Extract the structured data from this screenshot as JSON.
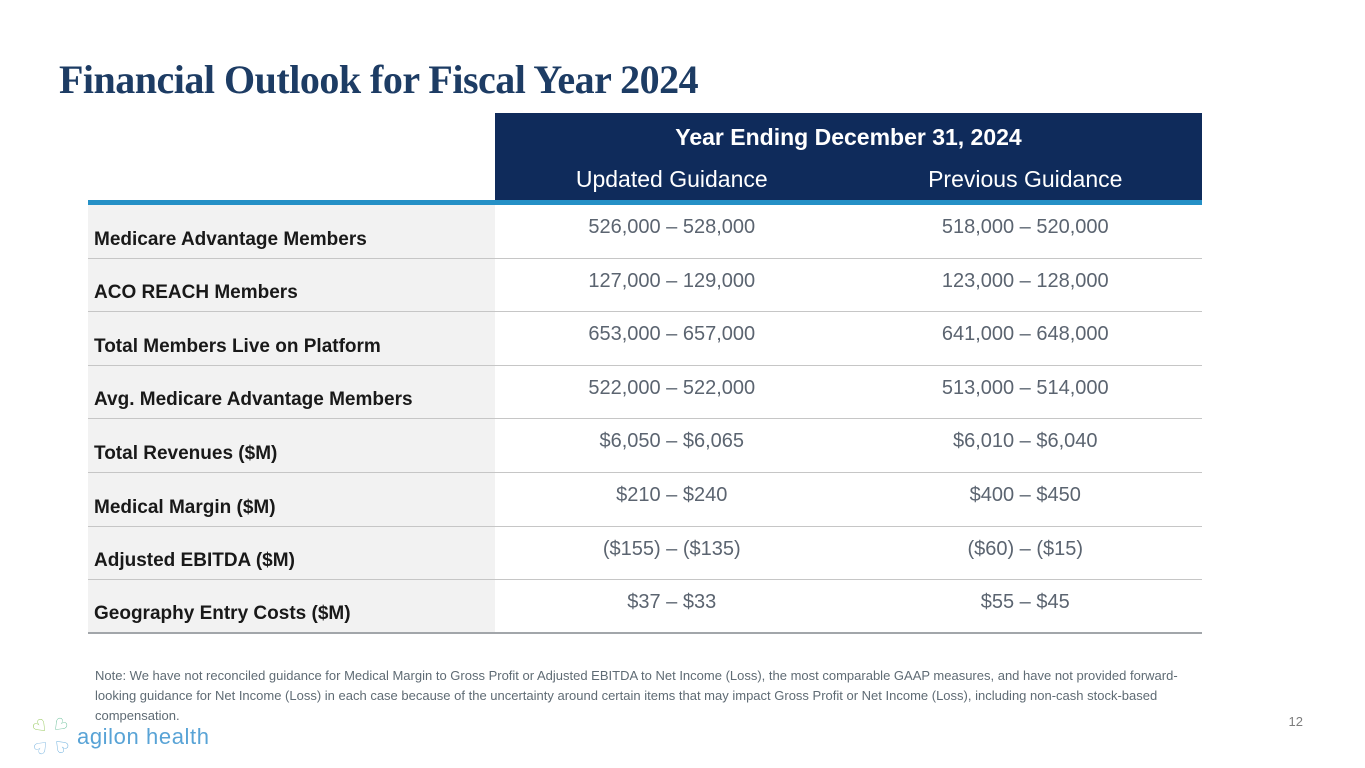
{
  "title": "Financial Outlook for Fiscal Year 2024",
  "table": {
    "header_title": "Year Ending December 31, 2024",
    "columns": [
      "Updated Guidance",
      "Previous Guidance"
    ],
    "rows": [
      {
        "label": "Medicare Advantage Members",
        "updated": "526,000 – 528,000",
        "previous": "518,000 – 520,000"
      },
      {
        "label": "ACO REACH Members",
        "updated": "127,000 – 129,000",
        "previous": "123,000 – 128,000"
      },
      {
        "label": "Total Members Live on Platform",
        "updated": "653,000 – 657,000",
        "previous": "641,000 – 648,000"
      },
      {
        "label": "Avg. Medicare Advantage Members",
        "updated": "522,000 – 522,000",
        "previous": "513,000 – 514,000"
      },
      {
        "label": "Total Revenues ($M)",
        "updated": "$6,050 – $6,065",
        "previous": "$6,010 – $6,040"
      },
      {
        "label": "Medical Margin ($M)",
        "updated": "$210 – $240",
        "previous": "$400 – $450"
      },
      {
        "label": "Adjusted EBITDA ($M)",
        "updated": "($155) – ($135)",
        "previous": "($60) – ($15)"
      },
      {
        "label": "Geography Entry Costs ($M)",
        "updated": "$37 – $33",
        "previous": "$55 – $45"
      }
    ]
  },
  "footnote": "Note: We have not reconciled guidance for Medical Margin to Gross Profit or Adjusted EBITDA to Net Income (Loss), the most comparable GAAP measures, and have not provided forward-looking guidance for Net Income (Loss) in each case because of the uncertainty around certain items that may impact Gross Profit or Net Income (Loss), including non-cash stock-based compensation.",
  "logo": {
    "text": "agilon health",
    "icon": "clover-hearts-icon",
    "heart_glyph": "♡"
  },
  "page_number": "12",
  "colors": {
    "title_navy": "#1d3c64",
    "header_navy": "#0f2b5b",
    "accent_blue": "#2590c6",
    "label_bg": "#f2f2f2",
    "value_gray": "#5b6470",
    "logo_blue": "#58a3d6",
    "logo_green": "#8cc34c"
  }
}
